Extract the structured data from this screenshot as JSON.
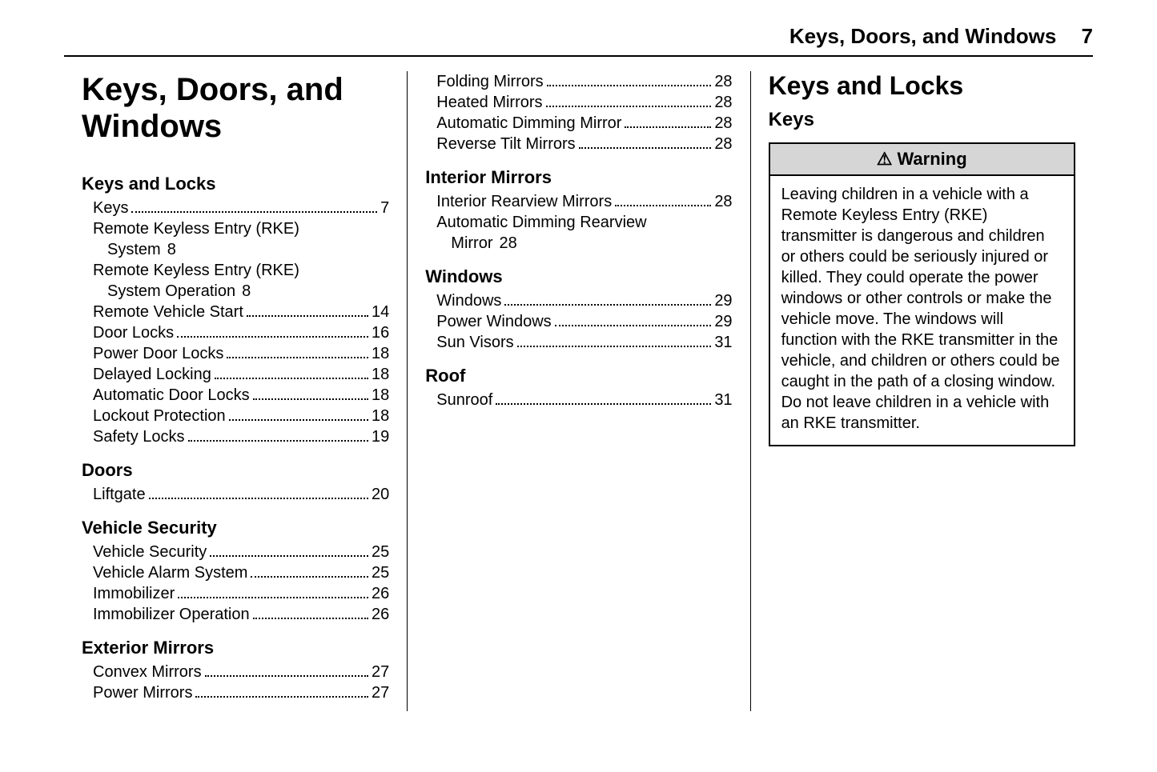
{
  "header": {
    "chapter_title": "Keys, Doors, and Windows",
    "page_number": "7"
  },
  "col1": {
    "main_title": "Keys, Doors, and Windows",
    "sections": [
      {
        "title": "Keys and Locks",
        "entries": [
          {
            "label": "Keys",
            "page": "7"
          },
          {
            "label": "Remote Keyless Entry (RKE) System",
            "page": "8",
            "wrap_after": "Remote Keyless Entry (RKE)",
            "cont": "System"
          },
          {
            "label": "Remote Keyless Entry (RKE) System Operation",
            "page": "8",
            "wrap_after": "Remote Keyless Entry (RKE)",
            "cont": "System Operation"
          },
          {
            "label": "Remote Vehicle Start",
            "page": "14"
          },
          {
            "label": "Door Locks",
            "page": "16"
          },
          {
            "label": "Power Door Locks",
            "page": "18"
          },
          {
            "label": "Delayed Locking",
            "page": "18"
          },
          {
            "label": "Automatic Door Locks",
            "page": "18"
          },
          {
            "label": "Lockout Protection",
            "page": "18"
          },
          {
            "label": "Safety Locks",
            "page": "19"
          }
        ]
      },
      {
        "title": "Doors",
        "entries": [
          {
            "label": "Liftgate",
            "page": "20"
          }
        ]
      },
      {
        "title": "Vehicle Security",
        "entries": [
          {
            "label": "Vehicle Security",
            "page": "25"
          },
          {
            "label": "Vehicle Alarm System",
            "page": "25"
          },
          {
            "label": "Immobilizer",
            "page": "26"
          },
          {
            "label": "Immobilizer Operation",
            "page": "26"
          }
        ]
      },
      {
        "title": "Exterior Mirrors",
        "entries": [
          {
            "label": "Convex Mirrors",
            "page": "27"
          },
          {
            "label": "Power Mirrors",
            "page": "27"
          }
        ]
      }
    ]
  },
  "col2": {
    "sections": [
      {
        "title": null,
        "entries": [
          {
            "label": "Folding Mirrors",
            "page": "28"
          },
          {
            "label": "Heated Mirrors",
            "page": "28"
          },
          {
            "label": "Automatic Dimming Mirror",
            "page": "28"
          },
          {
            "label": "Reverse Tilt Mirrors",
            "page": "28"
          }
        ]
      },
      {
        "title": "Interior Mirrors",
        "entries": [
          {
            "label": "Interior Rearview Mirrors",
            "page": "28"
          },
          {
            "label": "Automatic Dimming Rearview Mirror",
            "page": "28",
            "wrap_after": "Automatic Dimming Rearview",
            "cont": "Mirror"
          }
        ]
      },
      {
        "title": "Windows",
        "entries": [
          {
            "label": "Windows",
            "page": "29"
          },
          {
            "label": "Power Windows",
            "page": "29"
          },
          {
            "label": "Sun Visors",
            "page": "31"
          }
        ]
      },
      {
        "title": "Roof",
        "entries": [
          {
            "label": "Sunroof",
            "page": "31"
          }
        ]
      }
    ]
  },
  "col3": {
    "h1": "Keys and Locks",
    "h2": "Keys",
    "warning": {
      "icon": "⚠",
      "title": "Warning",
      "body": "Leaving children in a vehicle with a Remote Keyless Entry (RKE) transmitter is dangerous and children or others could be seriously injured or killed. They could operate the power windows or other controls or make the vehicle move. The windows will function with the RKE transmitter in the vehicle, and children or others could be caught in the path of a closing window. Do not leave children in a vehicle with an RKE transmitter."
    }
  }
}
